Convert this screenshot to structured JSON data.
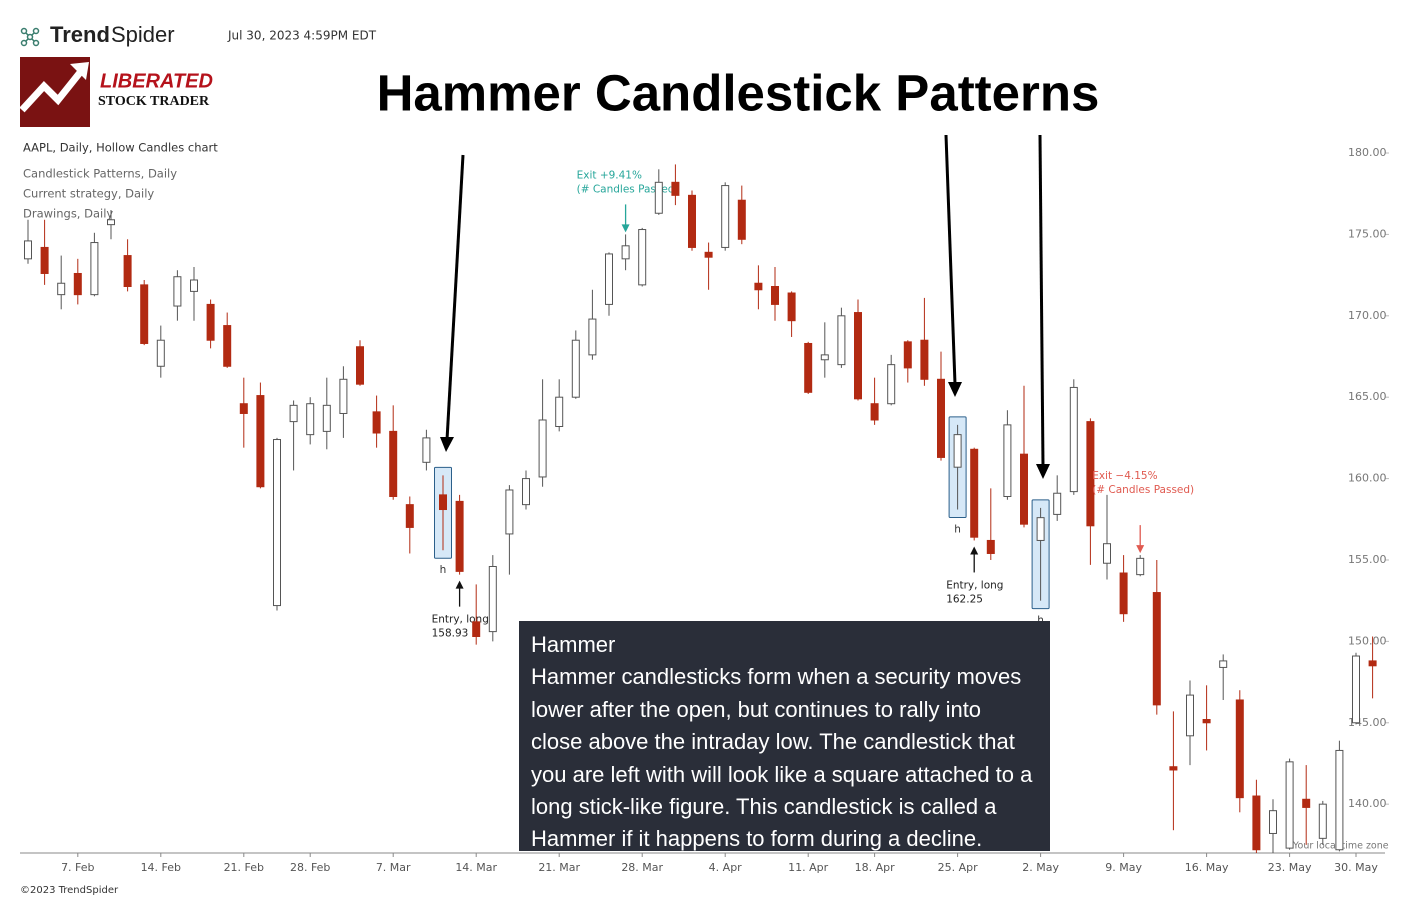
{
  "header": {
    "brand_bold": "Trend",
    "brand_light": "Spider",
    "timestamp": "Jul 30, 2023 4:59PM EDT",
    "logo_line1": "LIBERATED",
    "logo_line2": "STOCK TRADER"
  },
  "legend_lines": [
    "AAPL, Daily, Hollow Candles chart",
    "Candlestick Patterns, Daily",
    "Current strategy, Daily",
    "Drawings, Daily"
  ],
  "tooltip": {
    "title": "Hammer",
    "text": "Hammer candlesticks form when a security moves lower after the open, but continues to rally into close above the intraday low. The candlestick that you are left with will look like a square attached to a long stick-like figure. This candlestick is called a Hammer if it happens to form during a decline."
  },
  "footer": {
    "copyright": "©2023 TrendSpider",
    "timezone": "Your local time zone"
  },
  "chart_data": {
    "type": "candlestick",
    "title": "Hammer Candlestick Patterns",
    "categories": [
      null,
      null,
      null,
      "7. Feb",
      null,
      null,
      null,
      null,
      "14. Feb",
      null,
      null,
      null,
      null,
      "21. Feb",
      null,
      null,
      null,
      "28. Feb",
      null,
      null,
      null,
      null,
      "7. Mar",
      null,
      null,
      null,
      null,
      "14. Mar",
      null,
      null,
      null,
      null,
      "21. Mar",
      null,
      null,
      null,
      null,
      "28. Mar",
      null,
      null,
      null,
      null,
      "4. Apr",
      null,
      null,
      null,
      null,
      "11. Apr",
      null,
      null,
      null,
      "18. Apr",
      null,
      null,
      null,
      null,
      "25. Apr",
      null,
      null,
      null,
      null,
      "2. May",
      null,
      null,
      null,
      null,
      "9. May",
      null,
      null,
      null,
      null,
      "16. May",
      null,
      null,
      null,
      null,
      "23. May",
      null,
      null,
      null,
      "30. May",
      null
    ],
    "open": [
      173.5,
      174.2,
      171.3,
      172.6,
      171.3,
      175.6,
      173.7,
      171.9,
      166.9,
      170.6,
      171.5,
      170.7,
      169.4,
      164.6,
      165.1,
      152.2,
      163.5,
      162.7,
      162.9,
      164.0,
      168.1,
      164.1,
      162.9,
      158.4,
      161.0,
      159.0,
      158.6,
      151.2,
      150.6,
      156.6,
      158.4,
      160.1,
      163.2,
      165.0,
      167.6,
      170.7,
      173.5,
      171.9,
      176.3,
      178.2,
      177.4,
      173.9,
      174.2,
      177.1,
      172.0,
      171.8,
      171.4,
      168.3,
      167.3,
      167.0,
      170.2,
      164.6,
      164.6,
      168.4,
      168.5,
      166.1,
      160.7,
      161.8,
      156.2,
      158.9,
      161.5,
      156.2,
      157.8,
      159.2,
      163.5,
      154.8,
      154.2,
      154.1,
      153.0,
      142.3,
      144.2,
      145.2,
      148.4,
      146.4,
      140.5,
      138.2,
      137.3,
      140.3,
      137.9,
      137.2,
      145.0,
      148.8
    ],
    "high": [
      175.9,
      175.9,
      173.7,
      173.5,
      175.1,
      176.5,
      174.7,
      172.2,
      169.4,
      172.8,
      173.0,
      171.0,
      170.2,
      166.2,
      165.9,
      162.5,
      164.8,
      165.0,
      166.2,
      166.9,
      168.5,
      165.1,
      164.5,
      158.9,
      163.0,
      160.2,
      159.0,
      153.5,
      155.3,
      159.6,
      160.5,
      166.1,
      166.1,
      169.1,
      171.6,
      173.9,
      175.0,
      175.4,
      179.0,
      179.3,
      177.7,
      174.5,
      178.2,
      178.0,
      173.1,
      173.0,
      171.5,
      168.4,
      169.6,
      170.5,
      171.0,
      166.2,
      167.6,
      168.5,
      171.1,
      167.8,
      163.3,
      161.9,
      159.4,
      164.2,
      165.7,
      158.2,
      160.2,
      166.1,
      163.7,
      159.0,
      155.3,
      155.3,
      155.0,
      145.7,
      147.6,
      147.3,
      149.2,
      147.0,
      141.5,
      140.3,
      142.8,
      142.4,
      140.2,
      143.9,
      149.3,
      150.3
    ],
    "low": [
      173.2,
      171.9,
      170.4,
      170.7,
      171.2,
      174.7,
      171.5,
      168.2,
      166.2,
      169.7,
      169.7,
      168.0,
      166.8,
      161.9,
      159.4,
      151.9,
      160.5,
      162.1,
      161.8,
      162.5,
      165.7,
      161.9,
      158.7,
      155.4,
      160.5,
      155.6,
      154.1,
      149.8,
      150.0,
      154.1,
      158.1,
      159.5,
      162.9,
      164.9,
      167.3,
      170.0,
      172.8,
      171.8,
      176.2,
      176.8,
      174.0,
      171.6,
      174.0,
      174.4,
      170.4,
      169.7,
      168.7,
      165.2,
      166.2,
      166.8,
      164.8,
      163.3,
      164.5,
      165.9,
      165.7,
      161.1,
      158.1,
      156.2,
      155.0,
      158.7,
      157.0,
      152.5,
      157.4,
      159.0,
      154.7,
      153.8,
      151.2,
      154.0,
      145.5,
      138.4,
      142.4,
      143.3,
      146.4,
      139.5,
      137.0,
      137.0,
      137.2,
      137.5,
      137.5,
      137.1,
      144.9,
      146.5
    ],
    "close": [
      174.6,
      172.6,
      172.0,
      171.3,
      174.5,
      175.9,
      171.8,
      168.3,
      168.5,
      172.4,
      172.2,
      168.5,
      166.9,
      164.0,
      159.5,
      162.4,
      164.5,
      164.6,
      164.5,
      166.1,
      165.8,
      162.8,
      158.9,
      157.0,
      162.5,
      158.1,
      154.3,
      150.3,
      154.6,
      159.3,
      160.0,
      163.6,
      165.0,
      168.5,
      169.8,
      173.8,
      174.3,
      175.3,
      178.2,
      177.4,
      174.2,
      173.6,
      178.0,
      174.7,
      171.6,
      170.7,
      169.7,
      165.3,
      167.6,
      170.0,
      164.9,
      163.6,
      167.0,
      166.8,
      166.1,
      161.3,
      162.7,
      156.4,
      155.4,
      163.3,
      157.2,
      157.6,
      159.1,
      165.6,
      157.1,
      156.0,
      151.7,
      155.1,
      146.1,
      142.1,
      146.7,
      145.0,
      148.8,
      140.4,
      137.2,
      139.6,
      142.6,
      139.8,
      140.0,
      143.3,
      149.1,
      148.5
    ],
    "hammer_labels": [
      null,
      null,
      null,
      null,
      null,
      null,
      null,
      null,
      null,
      null,
      null,
      null,
      null,
      null,
      null,
      null,
      null,
      null,
      null,
      null,
      null,
      null,
      null,
      null,
      null,
      "h",
      null,
      null,
      null,
      null,
      null,
      null,
      null,
      null,
      null,
      null,
      null,
      null,
      null,
      null,
      null,
      null,
      null,
      null,
      null,
      null,
      null,
      null,
      null,
      null,
      null,
      null,
      null,
      null,
      null,
      null,
      "h",
      null,
      null,
      null,
      null,
      "h",
      null,
      null,
      null,
      null,
      null,
      null,
      null,
      null,
      null,
      null,
      null,
      null,
      null,
      null,
      null,
      null,
      null,
      null,
      null,
      null
    ],
    "signals": [
      null,
      null,
      null,
      null,
      null,
      null,
      null,
      null,
      null,
      null,
      null,
      null,
      null,
      null,
      null,
      null,
      null,
      null,
      null,
      null,
      null,
      null,
      null,
      null,
      null,
      null,
      {
        "label": "Entry, long",
        "price": 158.93
      },
      null,
      null,
      null,
      null,
      null,
      null,
      null,
      null,
      null,
      {
        "label": "Exit +9.41%",
        "note": "(# Candles Passed)"
      },
      null,
      null,
      null,
      null,
      null,
      null,
      null,
      null,
      null,
      null,
      null,
      null,
      null,
      null,
      null,
      null,
      null,
      null,
      null,
      null,
      {
        "label": "Entry, long",
        "price": 162.25
      },
      null,
      null,
      null,
      null,
      null,
      null,
      null,
      null,
      null,
      {
        "label": "Exit −4.15%",
        "note": "(# Candles Passed)"
      },
      null,
      null,
      null,
      null,
      null,
      null,
      null,
      null,
      null,
      null,
      null,
      null,
      null,
      null
    ],
    "up_color": "#ffffff",
    "down_color": "#b22a12",
    "entry_color": "#111111",
    "exit_up_color": "#26a69a",
    "exit_down_color": "#e05a50",
    "ylim": [
      137,
      181.5
    ],
    "yticks": [
      {
        "value": 140,
        "label": "140.00"
      },
      {
        "value": 145,
        "label": "145.00"
      },
      {
        "value": 150,
        "label": "150.00"
      },
      {
        "value": 155,
        "label": "155.00"
      },
      {
        "value": 160,
        "label": "160.00"
      },
      {
        "value": 165,
        "label": "165.00"
      },
      {
        "value": 170,
        "label": "170.00"
      },
      {
        "value": 175,
        "label": "175.00"
      },
      {
        "value": 180,
        "label": "180.00"
      }
    ]
  }
}
